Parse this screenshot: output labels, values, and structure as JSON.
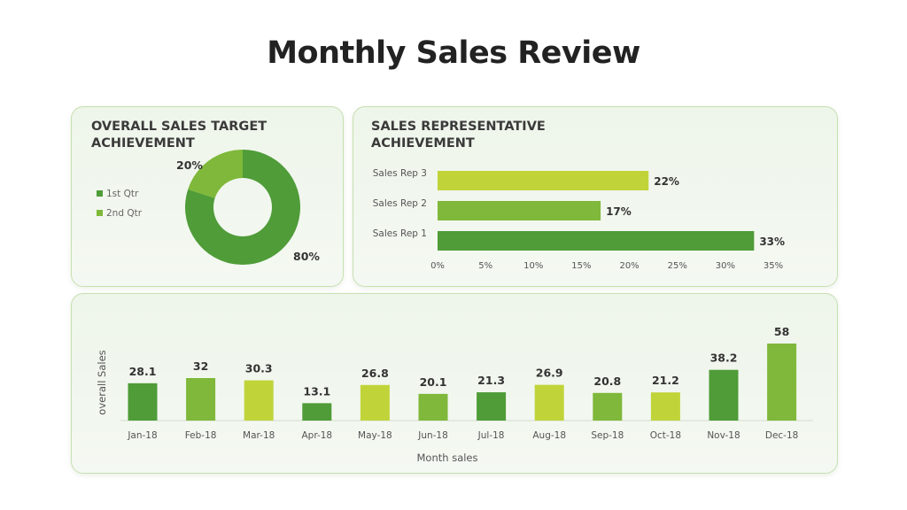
{
  "page": {
    "title": "Monthly Sales Review"
  },
  "colors": {
    "dark_green": "#4f9c38",
    "mid_green": "#7fb83a",
    "light_green": "#c0d43a"
  },
  "chart_data": [
    {
      "type": "pie",
      "variant": "donut",
      "title": "OVERALL SALES TARGET\nACHIEVEMENT",
      "legend_position": "left",
      "categories": [
        "1st Qtr",
        "2nd Qtr"
      ],
      "values": [
        80,
        20
      ],
      "value_labels": [
        "80%",
        "20%"
      ],
      "colors": [
        "#4f9c38",
        "#7fb83a"
      ]
    },
    {
      "type": "bar",
      "orientation": "horizontal",
      "title": "SALES REPRESENTATIVE\nACHIEVEMENT",
      "categories": [
        "Sales Rep 3",
        "Sales Rep 2",
        "Sales Rep 1"
      ],
      "values": [
        22,
        17,
        33
      ],
      "value_labels": [
        "22%",
        "17%",
        "33%"
      ],
      "colors": [
        "#c0d43a",
        "#7fb83a",
        "#4f9c38"
      ],
      "xlim": [
        0,
        35
      ],
      "x_ticks": [
        "0%",
        "5%",
        "10%",
        "15%",
        "20%",
        "25%",
        "30%",
        "35%"
      ],
      "grid": false
    },
    {
      "type": "bar",
      "orientation": "vertical",
      "categories": [
        "Jan-18",
        "Feb-18",
        "Mar-18",
        "Apr-18",
        "May-18",
        "Jun-18",
        "Jul-18",
        "Aug-18",
        "Sep-18",
        "Oct-18",
        "Nov-18",
        "Dec-18"
      ],
      "values": [
        28.1,
        32,
        30.3,
        13.1,
        26.8,
        20.1,
        21.3,
        26.9,
        20.8,
        21.2,
        38.2,
        58
      ],
      "value_labels": [
        "28.1",
        "32",
        "30.3",
        "13.1",
        "26.8",
        "20.1",
        "21.3",
        "26.9",
        "20.8",
        "21.2",
        "38.2",
        "58"
      ],
      "colors": [
        "#4f9c38",
        "#7fb83a",
        "#c0d43a",
        "#4f9c38",
        "#c0d43a",
        "#7fb83a",
        "#4f9c38",
        "#c0d43a",
        "#7fb83a",
        "#c0d43a",
        "#4f9c38",
        "#7fb83a"
      ],
      "xlabel": "Month sales",
      "ylabel": "overall Sales",
      "ylim": [
        0,
        58
      ],
      "grid": false
    }
  ]
}
